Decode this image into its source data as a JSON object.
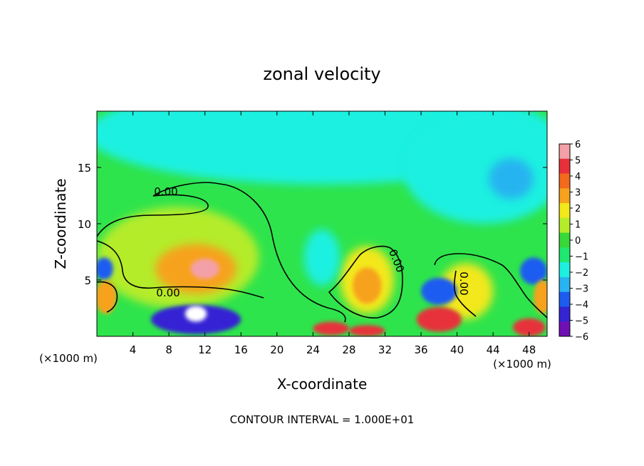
{
  "chart_data": {
    "type": "heatmap",
    "title": "zonal velocity",
    "xlabel": "X-coordinate",
    "ylabel": "Z-coordinate",
    "x_unit_left": "(×1000 m)",
    "x_unit_right": "(×1000 m)",
    "footer": "CONTOUR INTERVAL = 1.000E+01",
    "xlim": [
      0,
      50
    ],
    "ylim": [
      0,
      20
    ],
    "x_ticks": [
      4,
      8,
      12,
      16,
      20,
      24,
      28,
      32,
      36,
      40,
      44,
      48
    ],
    "y_ticks": [
      5,
      10,
      15
    ],
    "colorbar": {
      "ticks": [
        6,
        5,
        4,
        3,
        2,
        1,
        0,
        -1,
        -2,
        -3,
        -4,
        -5,
        -6
      ],
      "tick_labels": [
        "6",
        "5",
        "4",
        "3",
        "2",
        "1",
        "0",
        "−1",
        "−2",
        "−3",
        "−4",
        "−5",
        "−6"
      ],
      "colors": [
        "#f4a0a8",
        "#e8303a",
        "#f26a1c",
        "#f7a21c",
        "#f2e81a",
        "#b4ec2a",
        "#38d838",
        "#1ee870",
        "#1ef0e0",
        "#28b4f0",
        "#1c5cf0",
        "#3424d4",
        "#7010b4"
      ]
    },
    "contour_labels": [
      "0.00",
      "0.00",
      "0.00",
      "0.00"
    ],
    "features": [
      {
        "x": 25,
        "y": 18,
        "rx": 26,
        "ry": 4.5,
        "value": -1.6
      },
      {
        "x": 43,
        "y": 15,
        "rx": 9,
        "ry": 5,
        "value": -2.2
      },
      {
        "x": 46,
        "y": 14,
        "rx": 2.5,
        "ry": 1.8,
        "value": -3.0
      },
      {
        "x": 9,
        "y": 7,
        "rx": 9,
        "ry": 4.5,
        "value": 1.4
      },
      {
        "x": 11,
        "y": 6,
        "rx": 4.5,
        "ry": 2.2,
        "value": 3.2
      },
      {
        "x": 12,
        "y": 6,
        "rx": 1.6,
        "ry": 0.9,
        "value": 5.6
      },
      {
        "x": 30,
        "y": 5,
        "rx": 3,
        "ry": 3,
        "value": 2.0
      },
      {
        "x": 30,
        "y": 4.5,
        "rx": 1.6,
        "ry": 1.6,
        "value": 3.0
      },
      {
        "x": 41,
        "y": 4,
        "rx": 3,
        "ry": 2.5,
        "value": 1.8
      },
      {
        "x": 25,
        "y": 7,
        "rx": 2,
        "ry": 2.5,
        "value": -2.2
      },
      {
        "x": 38,
        "y": 4,
        "rx": 2,
        "ry": 1.2,
        "value": -4.0
      },
      {
        "x": 48.5,
        "y": 5.8,
        "rx": 1.5,
        "ry": 1.2,
        "value": -4.0
      },
      {
        "x": 0.8,
        "y": 6,
        "rx": 1,
        "ry": 1,
        "value": -3.5
      },
      {
        "x": 11,
        "y": 1.5,
        "rx": 5,
        "ry": 1.3,
        "value": -4.5
      },
      {
        "x": 11,
        "y": 2,
        "rx": 1.2,
        "ry": 0.7,
        "value": 6.5
      },
      {
        "x": 26,
        "y": 0.7,
        "rx": 2,
        "ry": 0.6,
        "value": 5.0
      },
      {
        "x": 30,
        "y": 0.5,
        "rx": 2,
        "ry": 0.5,
        "value": 5.0
      },
      {
        "x": 38,
        "y": 1.5,
        "rx": 2.5,
        "ry": 1.1,
        "value": 5.0
      },
      {
        "x": 48,
        "y": 0.8,
        "rx": 1.8,
        "ry": 0.8,
        "value": 5.0
      },
      {
        "x": 1,
        "y": 3.5,
        "rx": 1.2,
        "ry": 1.5,
        "value": 3.0
      },
      {
        "x": 49.5,
        "y": 3.5,
        "rx": 1,
        "ry": 1.5,
        "value": 3.0
      }
    ]
  }
}
